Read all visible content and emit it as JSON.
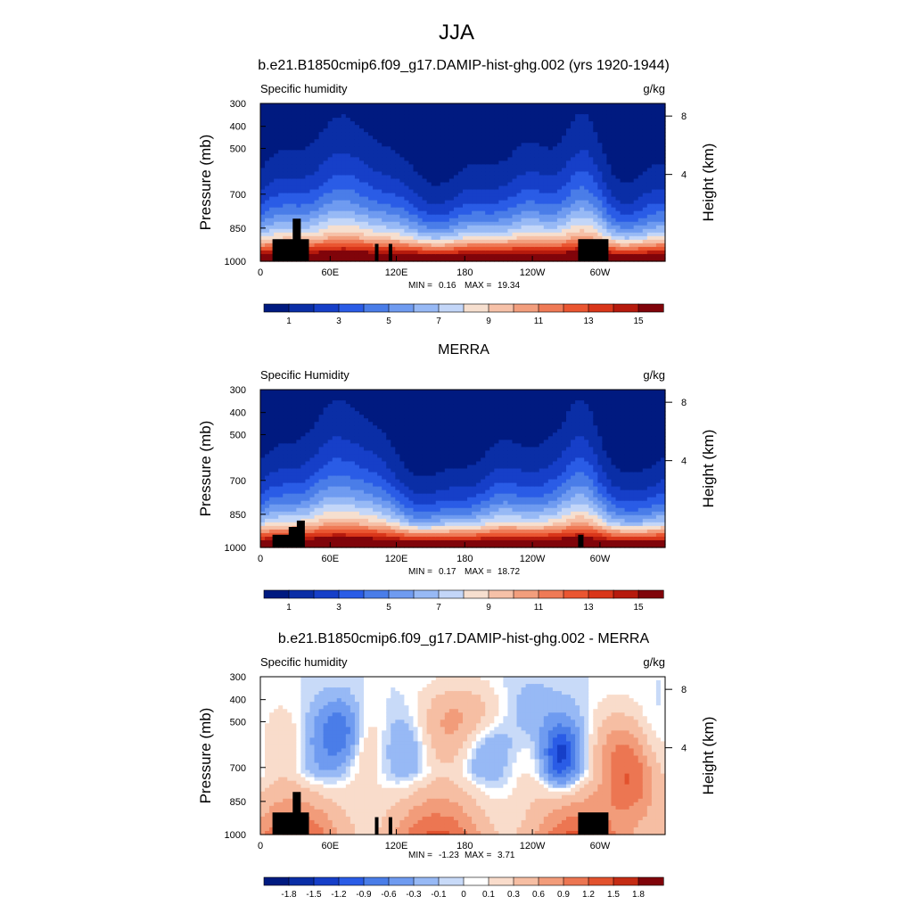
{
  "main_title": "JJA",
  "chart_data": [
    {
      "type": "heatmap",
      "title": "b.e21.B1850cmip6.f09_g17.DAMIP-hist-ghg.002 (yrs 1920-1944)",
      "left_label": "Specific humidity",
      "right_label": "g/kg",
      "ylabel": "Pressure (mb)",
      "y2label": "Height (km)",
      "x_ticks": [
        "0",
        "60E",
        "120E",
        "180",
        "120W",
        "60W"
      ],
      "y_ticks": [
        "300",
        "400",
        "500",
        "700",
        "850",
        "1000"
      ],
      "y2_ticks": [
        "8",
        "4"
      ],
      "min_label": "MIN =",
      "min_value": "0.16",
      "max_label": "MAX =",
      "max_value": "19.34",
      "colorbar_labels": [
        "1",
        "3",
        "5",
        "7",
        "9",
        "11",
        "13",
        "15"
      ],
      "colorbar_colors": [
        "#001a80",
        "#0a2ea6",
        "#163fc8",
        "#2a5ce6",
        "#4a7de8",
        "#6f9bf0",
        "#97b9f5",
        "#c3d6f8",
        "#f6dfcf",
        "#f6c1a8",
        "#f29e7d",
        "#ef7a56",
        "#ea5631",
        "#d9361a",
        "#b61a0d",
        "#80040a"
      ],
      "kind": "absolute"
    },
    {
      "type": "heatmap",
      "title": "MERRA",
      "left_label": "Specific Humidity",
      "right_label": "g/kg",
      "ylabel": "Pressure (mb)",
      "y2label": "Height (km)",
      "x_ticks": [
        "0",
        "60E",
        "120E",
        "180",
        "120W",
        "60W"
      ],
      "y_ticks": [
        "300",
        "400",
        "500",
        "700",
        "850",
        "1000"
      ],
      "y2_ticks": [
        "8",
        "4"
      ],
      "min_label": "MIN =",
      "min_value": "0.17",
      "max_label": "MAX =",
      "max_value": "18.72",
      "colorbar_labels": [
        "1",
        "3",
        "5",
        "7",
        "9",
        "11",
        "13",
        "15"
      ],
      "colorbar_colors": [
        "#001a80",
        "#0a2ea6",
        "#163fc8",
        "#2a5ce6",
        "#4a7de8",
        "#6f9bf0",
        "#97b9f5",
        "#c3d6f8",
        "#f6dfcf",
        "#f6c1a8",
        "#f29e7d",
        "#ef7a56",
        "#ea5631",
        "#d9361a",
        "#b61a0d",
        "#80040a"
      ],
      "kind": "absolute"
    },
    {
      "type": "heatmap",
      "title": "b.e21.B1850cmip6.f09_g17.DAMIP-hist-ghg.002 - MERRA",
      "left_label": "Specific humidity",
      "right_label": "g/kg",
      "ylabel": "Pressure (mb)",
      "y2label": "Height (km)",
      "x_ticks": [
        "0",
        "60E",
        "120E",
        "180",
        "120W",
        "60W"
      ],
      "y_ticks": [
        "300",
        "400",
        "500",
        "700",
        "850",
        "1000"
      ],
      "y2_ticks": [
        "8",
        "4"
      ],
      "min_label": "MIN =",
      "min_value": "-1.23",
      "max_label": "MAX =",
      "max_value": "3.71",
      "colorbar_labels": [
        "-1.8",
        "-1.5",
        "-1.2",
        "-0.9",
        "-0.6",
        "-0.3",
        "-0.1",
        "0",
        "0.1",
        "0.3",
        "0.6",
        "0.9",
        "1.2",
        "1.5",
        "1.8"
      ],
      "colorbar_colors": [
        "#001a80",
        "#0a2ea6",
        "#163fc8",
        "#2a5ce6",
        "#4a7de8",
        "#6f9bf0",
        "#97b9f5",
        "#c8daf8",
        "#ffffff",
        "#f9dccb",
        "#f6bea3",
        "#f29c7a",
        "#ec7652",
        "#e2522e",
        "#c42c14",
        "#80040a"
      ],
      "kind": "difference"
    }
  ]
}
